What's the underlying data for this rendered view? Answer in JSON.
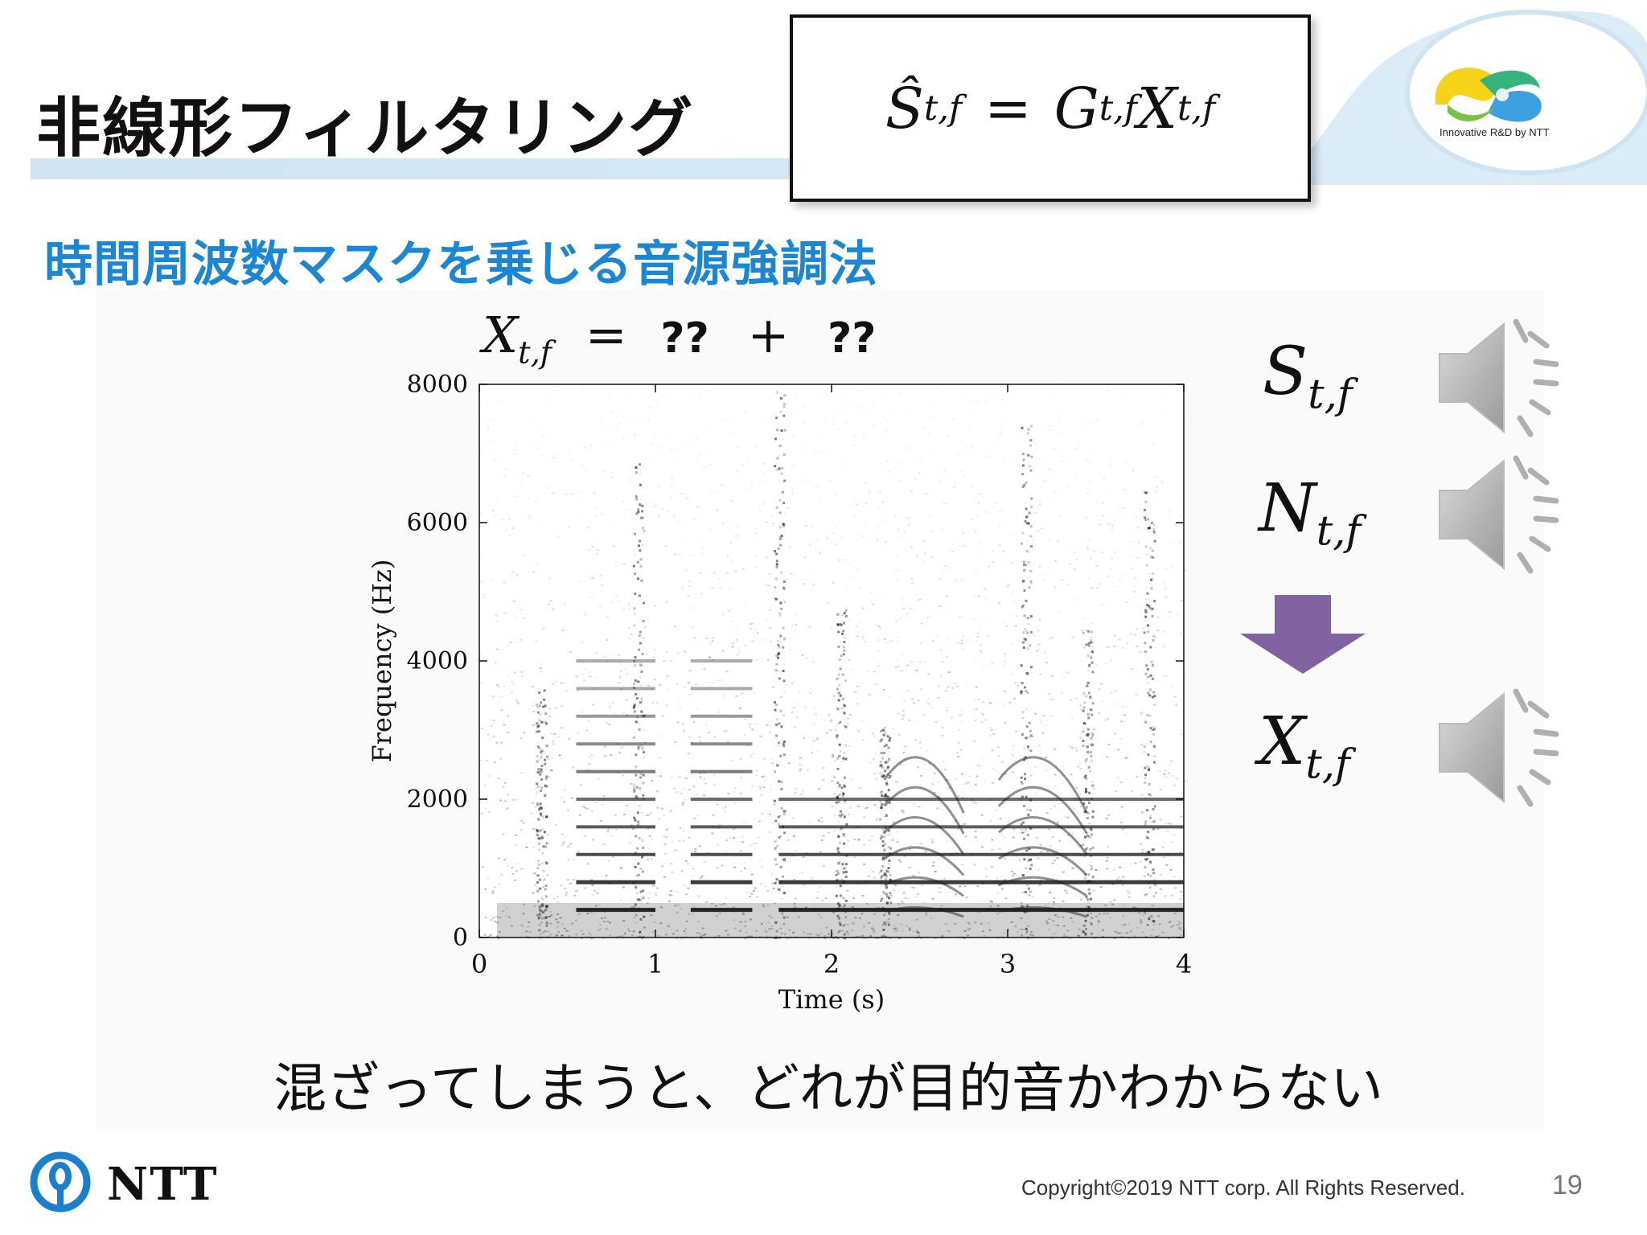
{
  "slide": {
    "title": "非線形フィルタリング",
    "subtitle": "時間周波数マスクを乗じる音源強調法",
    "caption": "混ざってしまうと、どれが目的音かわからない",
    "page_number": "19"
  },
  "formula": {
    "lhs": "Ŝ",
    "eq": "=",
    "g": "G",
    "x": "X",
    "sub": "t,f"
  },
  "mix_equation": {
    "lhs": "X",
    "sub": "t,f",
    "eq": "=",
    "term1": "??",
    "plus": "+",
    "term2": "??"
  },
  "sources": [
    {
      "symbol": "S",
      "sub": "t,f",
      "icon": "speaker-icon"
    },
    {
      "symbol": "N",
      "sub": "t,f",
      "icon": "speaker-icon"
    },
    {
      "symbol": "X",
      "sub": "t,f",
      "icon": "speaker-icon"
    }
  ],
  "arrow": {
    "icon": "down-arrow-icon",
    "color": "#8064a2"
  },
  "logo": {
    "text": "Innovative R&D by NTT"
  },
  "footer": {
    "brand": "NTT",
    "copyright": "Copyright©2019  NTT corp. All Rights Reserved."
  },
  "colors": {
    "title_accent": "#1a86d4",
    "title_bar": "#d3e7f4"
  },
  "chart_data": {
    "type": "heatmap",
    "title": "",
    "xlabel": "Time (s)",
    "ylabel": "Frequency (Hz)",
    "xlim": [
      0,
      4
    ],
    "ylim": [
      0,
      8000
    ],
    "xticks": [
      0,
      1,
      2,
      3,
      4
    ],
    "yticks": [
      0,
      2000,
      4000,
      6000,
      8000
    ],
    "colormap": "grayscale (dark = high energy)",
    "grid": false,
    "harmonic_segments": [
      {
        "t_start": 0.55,
        "t_end": 1.0,
        "f0": 400,
        "max_freq": 4000
      },
      {
        "t_start": 1.2,
        "t_end": 1.55,
        "f0": 400,
        "max_freq": 4000
      },
      {
        "t_start": 1.7,
        "t_end": 4.0,
        "f0": 400,
        "max_freq": 2000
      }
    ],
    "broadband_bursts": [
      0.35,
      0.9,
      1.7,
      2.05,
      2.3,
      3.1,
      3.45,
      3.8
    ]
  }
}
